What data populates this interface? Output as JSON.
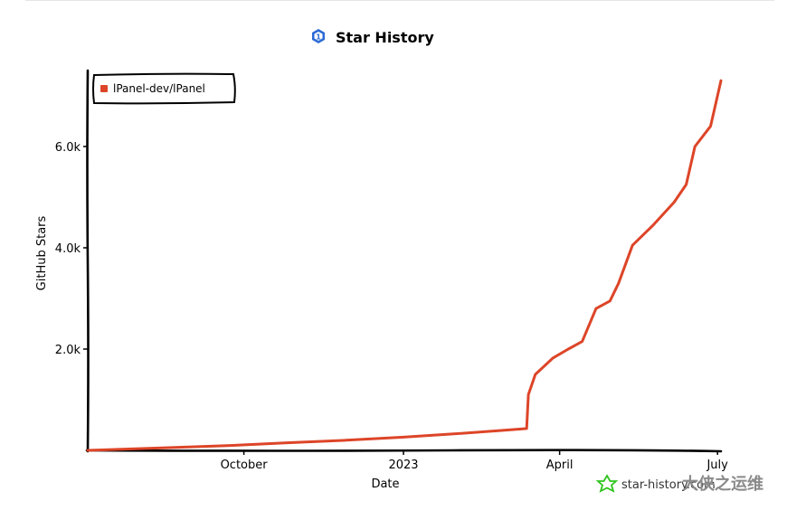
{
  "chart_data": {
    "type": "line",
    "title": "Star History",
    "xlabel": "Date",
    "ylabel": "GitHub Stars",
    "x_tick_labels": [
      "October",
      "2023",
      "April",
      "July"
    ],
    "y_tick_labels": [
      "2.0k",
      "4.0k",
      "6.0k"
    ],
    "y_ticks": [
      2000,
      4000,
      6000
    ],
    "x_ticks": [
      "2022-10-01",
      "2023-01-01",
      "2023-04-01",
      "2023-07-01"
    ],
    "xlim": [
      "2022-07-03",
      "2023-07-03"
    ],
    "ylim": [
      0,
      7500
    ],
    "legend_position": "top-left",
    "grid": false,
    "series": [
      {
        "name": "lPanel-dev/lPanel",
        "color": "#dd4528",
        "points": [
          [
            "2022-07-03",
            0
          ],
          [
            "2022-08-15",
            50
          ],
          [
            "2022-09-26",
            100
          ],
          [
            "2022-10-26",
            150
          ],
          [
            "2022-11-29",
            200
          ],
          [
            "2023-01-01",
            260
          ],
          [
            "2023-02-01",
            330
          ],
          [
            "2023-03-01",
            400
          ],
          [
            "2023-03-13",
            430
          ],
          [
            "2023-03-14",
            1100
          ],
          [
            "2023-03-18",
            1500
          ],
          [
            "2023-03-28",
            1820
          ],
          [
            "2023-04-06",
            2000
          ],
          [
            "2023-04-14",
            2150
          ],
          [
            "2023-04-22",
            2800
          ],
          [
            "2023-04-30",
            2950
          ],
          [
            "2023-05-05",
            3300
          ],
          [
            "2023-05-13",
            4050
          ],
          [
            "2023-05-25",
            4450
          ],
          [
            "2023-06-06",
            4900
          ],
          [
            "2023-06-13",
            5250
          ],
          [
            "2023-06-18",
            6000
          ],
          [
            "2023-06-27",
            6400
          ],
          [
            "2023-07-03",
            7300
          ]
        ]
      }
    ]
  },
  "watermark": {
    "badge_text": "star-history.com",
    "cn_text": "大侠之运维",
    "icon": "star-outline-icon",
    "icon_color": "#2ec41c"
  },
  "title_icon": "star-history-logo-icon",
  "title_icon_color": "#2b6bd6"
}
